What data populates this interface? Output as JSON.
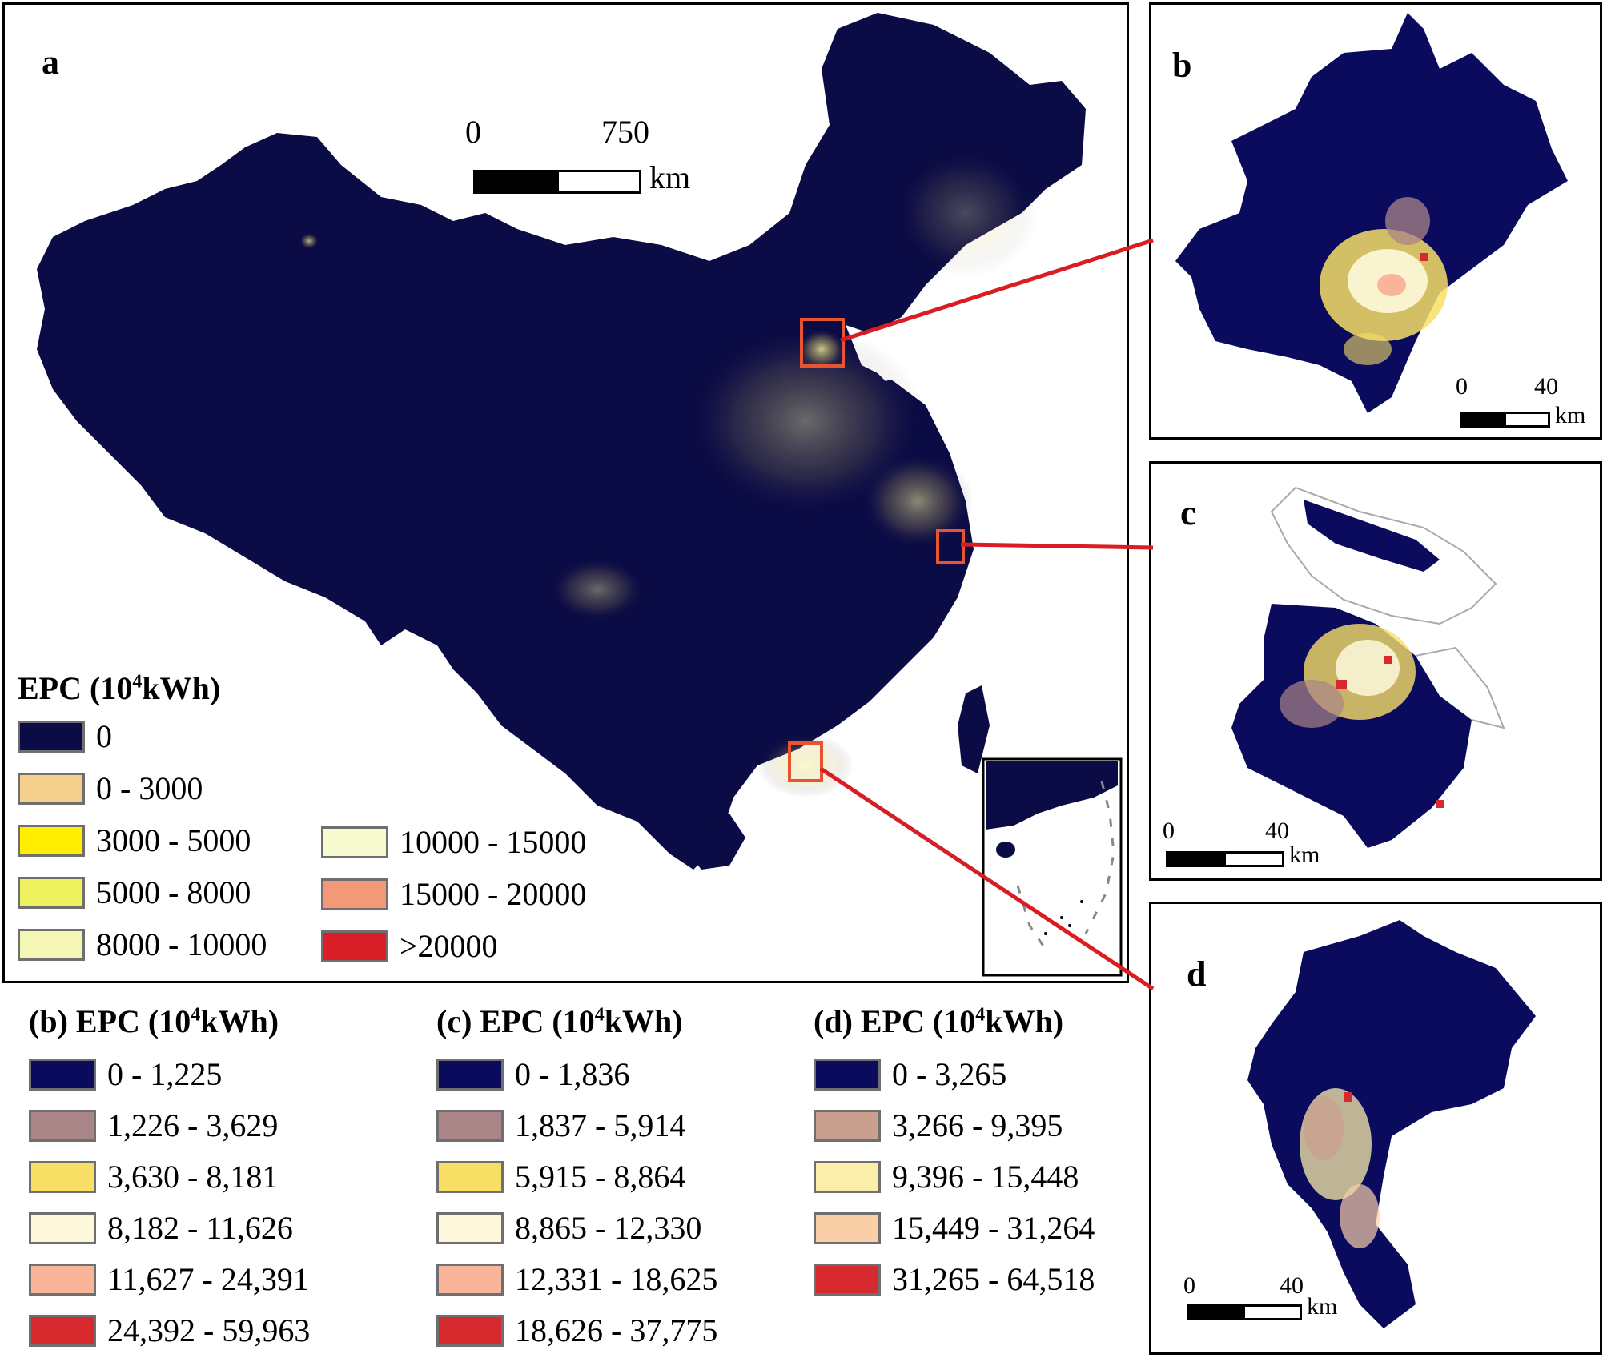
{
  "colors": {
    "background": "#0b0b45",
    "frame": "#000000",
    "highlight_box": "#e8542e",
    "connector": "#d81e24",
    "zero": "#0b0b45"
  },
  "panels": {
    "a": {
      "label": "a",
      "scalebar": {
        "start": "0",
        "end": "750",
        "unit": "km"
      },
      "legend_title": "EPC (10",
      "legend_sup": "4",
      "legend_tail": "kWh)",
      "legend": [
        {
          "label": "0",
          "color": "#0b0b45"
        },
        {
          "label": "0 - 3000",
          "color": "#f5cf8c"
        },
        {
          "label": "3000 - 5000",
          "color": "#ffee00"
        },
        {
          "label": "5000 - 8000",
          "color": "#eef25e"
        },
        {
          "label": "8000 - 10000",
          "color": "#f4f7b4"
        },
        {
          "label": "10000 - 15000",
          "color": "#f7f9cf"
        },
        {
          "label": "15000 - 20000",
          "color": "#f4987a"
        },
        {
          "label": ">20000",
          "color": "#d81e26"
        }
      ]
    },
    "b": {
      "label": "b",
      "scalebar": {
        "start": "0",
        "end": "40",
        "unit": "km"
      },
      "legend_title": "(b) EPC (10",
      "legend_sup": "4",
      "legend_tail": "kWh)",
      "legend": [
        {
          "label": "0 - 1,225",
          "color": "#0b0b5e"
        },
        {
          "label": "1,226 - 3,629",
          "color": "#a98588"
        },
        {
          "label": "3,630 - 8,181",
          "color": "#f7df66"
        },
        {
          "label": "8,182 - 11,626",
          "color": "#fdf8dc"
        },
        {
          "label": "11,627 - 24,391",
          "color": "#f9b49a"
        },
        {
          "label": "24,392 - 59,963",
          "color": "#d62a2f"
        }
      ]
    },
    "c": {
      "label": "c",
      "scalebar": {
        "start": "0",
        "end": "40",
        "unit": "km"
      },
      "legend_title": "(c) EPC (10",
      "legend_sup": "4",
      "legend_tail": "kWh)",
      "legend": [
        {
          "label": "0 - 1,836",
          "color": "#0b0b5e"
        },
        {
          "label": "1,837 - 5,914",
          "color": "#a98588"
        },
        {
          "label": "5,915 - 8,864",
          "color": "#f7df66"
        },
        {
          "label": "8,865 - 12,330",
          "color": "#fdf8dc"
        },
        {
          "label": "12,331 - 18,625",
          "color": "#f9b49a"
        },
        {
          "label": "18,626 - 37,775",
          "color": "#d62a2f"
        }
      ]
    },
    "d": {
      "label": "d",
      "scalebar": {
        "start": "0",
        "end": "40",
        "unit": "km"
      },
      "legend_title": "(d) EPC (10",
      "legend_sup": "4",
      "legend_tail": "kWh)",
      "legend": [
        {
          "label": "0 - 3,265",
          "color": "#0b0b5e"
        },
        {
          "label": "3,266 - 9,395",
          "color": "#c9a08e"
        },
        {
          "label": "9,396 - 15,448",
          "color": "#fbeeaa"
        },
        {
          "label": "15,449 - 31,264",
          "color": "#f9cfa8"
        },
        {
          "label": "31,265 - 64,518",
          "color": "#d62a2f"
        }
      ]
    }
  }
}
